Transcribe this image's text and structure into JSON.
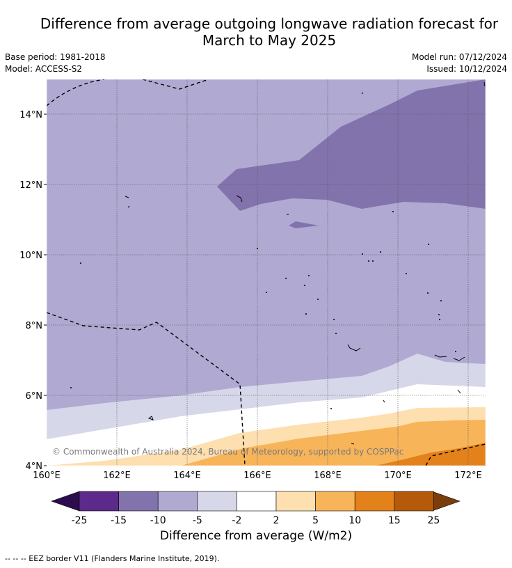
{
  "title_line1": "Difference from average outgoing longwave radiation forecast for",
  "title_line2": "March to May 2025",
  "base_period": "Base period: 1981-2018",
  "model": "Model: ACCESS-S2",
  "model_run": "Model run: 07/12/2024",
  "issued": "Issued: 10/12/2024",
  "copyright": "© Commonwealth of Australia 2024, Bureau of Meteorology, supported by COSPPac",
  "colorbar_title": "Difference from average (W/m2)",
  "footer": "--  --  -- EEZ border V11 (Flanders Marine Institute, 2019).",
  "map": {
    "lon_range": [
      160,
      172.5
    ],
    "lat_range": [
      4,
      15
    ],
    "x_ticks": [
      "160°E",
      "162°E",
      "164°E",
      "166°E",
      "168°E",
      "170°E",
      "172°E"
    ],
    "y_ticks": [
      "14°N",
      "12°N",
      "10°N",
      "8°N",
      "6°N",
      "4°N"
    ]
  },
  "colorbar": {
    "labels": [
      "-25",
      "-15",
      "-10",
      "-5",
      "-2",
      "2",
      "5",
      "10",
      "15",
      "25"
    ],
    "colors": [
      "#5c2a8a",
      "#8273ad",
      "#b0a9d1",
      "#d7d7ea",
      "#ffffff",
      "#fddfb0",
      "#f8b459",
      "#e3821b",
      "#b55a0b"
    ],
    "low_extend_color": "#2d0c4e",
    "high_extend_color": "#7a3e0c"
  }
}
